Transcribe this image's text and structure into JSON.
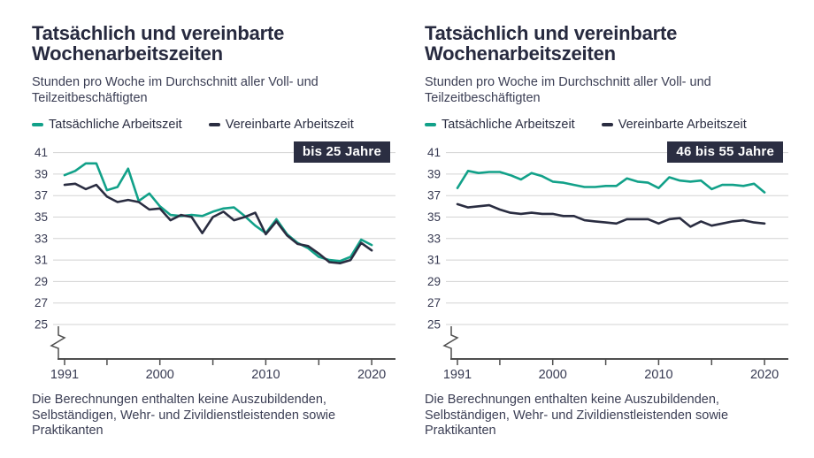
{
  "colors": {
    "accent_teal": "#12a189",
    "dark_navy": "#2a2d41",
    "grid": "#d3d3d3",
    "axis": "#4f4f4f",
    "badge_bg": "#2b2e42",
    "badge_text": "#ffffff"
  },
  "chart_data": [
    {
      "type": "line",
      "title": "Tatsächlich und vereinbarte Wochenarbeitszeiten",
      "subtitle": "Stunden pro Woche im Durchschnitt aller Voll- und Teilzeitbeschäftigten",
      "badge": "bis 25 Jahre",
      "footnote": "Die Berechnungen enthalten keine Auszubildenden, Selbständigen, Wehr- und Zivildienstleistenden sowie Praktikanten",
      "x": [
        1991,
        1992,
        1993,
        1994,
        1995,
        1996,
        1997,
        1998,
        1999,
        2000,
        2001,
        2002,
        2003,
        2004,
        2005,
        2006,
        2007,
        2008,
        2009,
        2010,
        2011,
        2012,
        2013,
        2014,
        2015,
        2016,
        2017,
        2018,
        2019,
        2020
      ],
      "series": [
        {
          "name": "Tatsächliche Arbeitszeit",
          "color": "#12a189",
          "values": [
            38.9,
            39.3,
            40.0,
            40.0,
            37.5,
            37.8,
            39.5,
            36.5,
            37.2,
            36.0,
            35.2,
            35.1,
            35.2,
            35.1,
            35.5,
            35.8,
            35.9,
            35.1,
            34.2,
            33.5,
            34.8,
            33.4,
            32.6,
            32.1,
            31.3,
            31.0,
            30.9,
            31.3,
            32.9,
            32.4
          ]
        },
        {
          "name": "Vereinbarte Arbeitszeit",
          "color": "#2a2d41",
          "values": [
            38.0,
            38.1,
            37.6,
            38.0,
            36.9,
            36.4,
            36.6,
            36.4,
            35.7,
            35.8,
            34.7,
            35.2,
            35.0,
            33.5,
            35.0,
            35.5,
            34.7,
            35.0,
            35.4,
            33.4,
            34.6,
            33.3,
            32.5,
            32.3,
            31.6,
            30.8,
            30.7,
            31.0,
            32.6,
            31.9
          ]
        }
      ],
      "ylim": [
        25,
        41
      ],
      "yticks": [
        41,
        39,
        37,
        35,
        33,
        31,
        29,
        27,
        25
      ],
      "xticks": [
        1991,
        1995,
        2000,
        2005,
        2010,
        2015,
        2020
      ],
      "xtick_labels": [
        1991,
        2000,
        2010,
        2020
      ],
      "grid": true,
      "legend_position": "top",
      "y_axis_break": true
    },
    {
      "type": "line",
      "title": "Tatsächlich und vereinbarte Wochenarbeitszeiten",
      "subtitle": "Stunden pro Woche im Durchschnitt aller Voll- und Teilzeitbeschäftigten",
      "badge": "46 bis 55 Jahre",
      "footnote": "Die Berechnungen enthalten keine Auszubildenden, Selbständigen, Wehr- und Zivildienstleistenden sowie Praktikanten",
      "x": [
        1991,
        1992,
        1993,
        1994,
        1995,
        1996,
        1997,
        1998,
        1999,
        2000,
        2001,
        2002,
        2003,
        2004,
        2005,
        2006,
        2007,
        2008,
        2009,
        2010,
        2011,
        2012,
        2013,
        2014,
        2015,
        2016,
        2017,
        2018,
        2019,
        2020
      ],
      "series": [
        {
          "name": "Tatsächliche Arbeitszeit",
          "color": "#12a189",
          "values": [
            37.7,
            39.3,
            39.1,
            39.2,
            39.2,
            38.9,
            38.5,
            39.1,
            38.8,
            38.3,
            38.2,
            38.0,
            37.8,
            37.8,
            37.9,
            37.9,
            38.6,
            38.3,
            38.2,
            37.7,
            38.7,
            38.4,
            38.3,
            38.4,
            37.6,
            38.0,
            38.0,
            37.9,
            38.1,
            37.3
          ]
        },
        {
          "name": "Vereinbarte Arbeitszeit",
          "color": "#2a2d41",
          "values": [
            36.2,
            35.9,
            36.0,
            36.1,
            35.7,
            35.4,
            35.3,
            35.4,
            35.3,
            35.3,
            35.1,
            35.1,
            34.7,
            34.6,
            34.5,
            34.4,
            34.8,
            34.8,
            34.8,
            34.4,
            34.8,
            34.9,
            34.1,
            34.6,
            34.2,
            34.4,
            34.6,
            34.7,
            34.5,
            34.4
          ]
        }
      ],
      "ylim": [
        25,
        41
      ],
      "yticks": [
        41,
        39,
        37,
        35,
        33,
        31,
        29,
        27,
        25
      ],
      "xticks": [
        1991,
        1995,
        2000,
        2005,
        2010,
        2015,
        2020
      ],
      "xtick_labels": [
        1991,
        2000,
        2010,
        2020
      ],
      "grid": true,
      "legend_position": "top",
      "y_axis_break": true
    }
  ]
}
